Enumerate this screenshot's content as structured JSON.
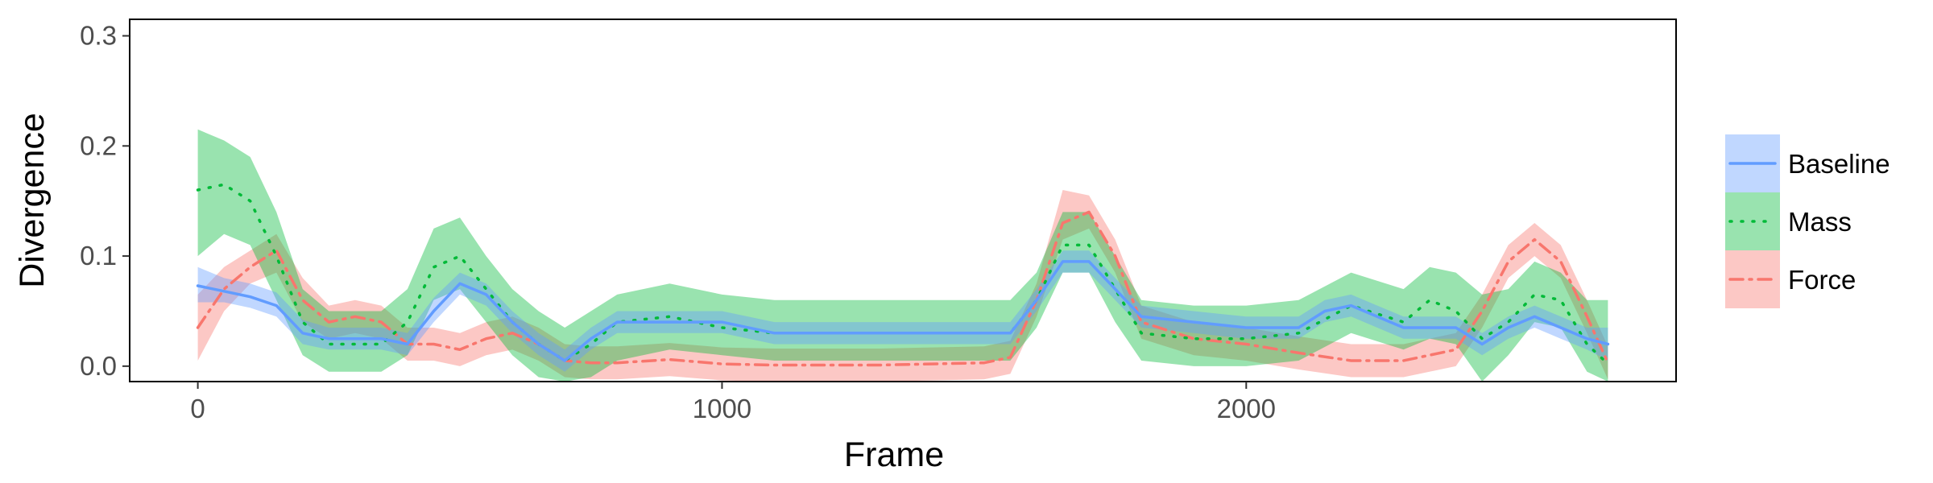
{
  "chart_data": {
    "type": "line",
    "title": "",
    "xlabel": "Frame",
    "ylabel": "Divergence",
    "xlim": [
      -130,
      2820
    ],
    "ylim": [
      -0.014,
      0.315
    ],
    "xticks": [
      0,
      1000,
      2000
    ],
    "xtick_labels": [
      "0",
      "1000",
      "2000"
    ],
    "yticks": [
      0.0,
      0.1,
      0.2,
      0.3
    ],
    "ytick_labels": [
      "0.0",
      "0.1",
      "0.2",
      "0.3"
    ],
    "grid": false,
    "legend_position": "right",
    "series": [
      {
        "name": "Force",
        "color": "#F8766D",
        "linestyle": "dashdot",
        "x": [
          0,
          50,
          100,
          150,
          200,
          250,
          300,
          350,
          400,
          450,
          500,
          550,
          600,
          650,
          700,
          750,
          800,
          900,
          1000,
          1100,
          1200,
          1300,
          1400,
          1500,
          1550,
          1600,
          1650,
          1700,
          1750,
          1800,
          1900,
          2000,
          2100,
          2200,
          2300,
          2400,
          2450,
          2500,
          2550,
          2600,
          2650,
          2690
        ],
        "y": [
          0.035,
          0.07,
          0.09,
          0.105,
          0.06,
          0.04,
          0.045,
          0.04,
          0.02,
          0.02,
          0.015,
          0.025,
          0.03,
          0.02,
          0.005,
          0.003,
          0.003,
          0.006,
          0.002,
          0.001,
          0.001,
          0.001,
          0.002,
          0.003,
          0.008,
          0.06,
          0.13,
          0.14,
          0.1,
          0.04,
          0.025,
          0.02,
          0.012,
          0.005,
          0.005,
          0.015,
          0.05,
          0.095,
          0.115,
          0.095,
          0.045,
          0.003
        ],
        "lower": [
          0.005,
          0.05,
          0.075,
          0.085,
          0.04,
          0.025,
          0.03,
          0.025,
          0.005,
          0.005,
          0.0,
          0.01,
          0.015,
          0.005,
          -0.01,
          -0.012,
          -0.012,
          -0.009,
          -0.013,
          -0.014,
          -0.014,
          -0.014,
          -0.013,
          -0.012,
          -0.007,
          0.045,
          0.115,
          0.125,
          0.085,
          0.025,
          0.01,
          0.005,
          -0.003,
          -0.01,
          -0.01,
          0.0,
          0.035,
          0.08,
          0.1,
          0.08,
          0.03,
          -0.012
        ],
        "upper": [
          0.065,
          0.09,
          0.105,
          0.12,
          0.08,
          0.055,
          0.06,
          0.055,
          0.035,
          0.035,
          0.03,
          0.04,
          0.045,
          0.035,
          0.02,
          0.018,
          0.018,
          0.021,
          0.017,
          0.016,
          0.016,
          0.016,
          0.017,
          0.018,
          0.023,
          0.075,
          0.16,
          0.155,
          0.115,
          0.055,
          0.04,
          0.035,
          0.027,
          0.02,
          0.02,
          0.03,
          0.065,
          0.11,
          0.13,
          0.11,
          0.06,
          0.018
        ]
      },
      {
        "name": "Mass",
        "color": "#00BA38",
        "linestyle": "dotted",
        "x": [
          0,
          50,
          100,
          150,
          200,
          250,
          300,
          350,
          400,
          450,
          500,
          550,
          600,
          650,
          700,
          750,
          800,
          900,
          1000,
          1100,
          1200,
          1300,
          1400,
          1500,
          1550,
          1600,
          1650,
          1700,
          1750,
          1800,
          1900,
          2000,
          2100,
          2200,
          2300,
          2350,
          2400,
          2450,
          2500,
          2550,
          2600,
          2650,
          2690
        ],
        "y": [
          0.16,
          0.165,
          0.15,
          0.1,
          0.04,
          0.02,
          0.02,
          0.02,
          0.04,
          0.09,
          0.1,
          0.07,
          0.04,
          0.02,
          0.005,
          0.02,
          0.04,
          0.045,
          0.035,
          0.03,
          0.03,
          0.03,
          0.03,
          0.03,
          0.03,
          0.06,
          0.11,
          0.11,
          0.07,
          0.03,
          0.025,
          0.025,
          0.03,
          0.055,
          0.04,
          0.06,
          0.05,
          0.025,
          0.04,
          0.065,
          0.06,
          0.02,
          0.002
        ],
        "lower": [
          0.1,
          0.12,
          0.11,
          0.06,
          0.01,
          -0.005,
          -0.005,
          -0.005,
          0.01,
          0.06,
          0.07,
          0.04,
          0.01,
          -0.01,
          -0.014,
          -0.01,
          0.005,
          0.015,
          0.01,
          0.005,
          0.005,
          0.005,
          0.005,
          0.005,
          0.005,
          0.035,
          0.085,
          0.085,
          0.04,
          0.005,
          0.0,
          0.0,
          0.005,
          0.03,
          0.015,
          0.025,
          0.02,
          -0.014,
          0.01,
          0.04,
          0.035,
          -0.005,
          -0.014
        ],
        "upper": [
          0.215,
          0.205,
          0.19,
          0.14,
          0.07,
          0.05,
          0.05,
          0.05,
          0.07,
          0.125,
          0.135,
          0.1,
          0.07,
          0.05,
          0.035,
          0.05,
          0.065,
          0.075,
          0.065,
          0.06,
          0.06,
          0.06,
          0.06,
          0.06,
          0.06,
          0.085,
          0.14,
          0.14,
          0.1,
          0.06,
          0.055,
          0.055,
          0.06,
          0.085,
          0.07,
          0.09,
          0.085,
          0.065,
          0.07,
          0.095,
          0.085,
          0.06,
          0.06
        ]
      },
      {
        "name": "Baseline",
        "color": "#619CFF",
        "linestyle": "solid",
        "x": [
          0,
          50,
          100,
          150,
          200,
          250,
          300,
          350,
          400,
          450,
          500,
          550,
          600,
          650,
          700,
          750,
          800,
          900,
          1000,
          1100,
          1200,
          1300,
          1400,
          1500,
          1550,
          1600,
          1650,
          1700,
          1750,
          1800,
          1900,
          2000,
          2100,
          2150,
          2200,
          2250,
          2300,
          2400,
          2450,
          2500,
          2550,
          2600,
          2650,
          2690
        ],
        "y": [
          0.073,
          0.068,
          0.063,
          0.055,
          0.03,
          0.025,
          0.025,
          0.025,
          0.02,
          0.05,
          0.075,
          0.065,
          0.04,
          0.02,
          0.005,
          0.025,
          0.04,
          0.04,
          0.04,
          0.03,
          0.03,
          0.03,
          0.03,
          0.03,
          0.03,
          0.06,
          0.095,
          0.095,
          0.07,
          0.045,
          0.04,
          0.035,
          0.035,
          0.05,
          0.055,
          0.045,
          0.035,
          0.035,
          0.02,
          0.035,
          0.045,
          0.035,
          0.025,
          0.02
        ],
        "lower": [
          0.058,
          0.058,
          0.053,
          0.045,
          0.02,
          0.015,
          0.015,
          0.015,
          0.01,
          0.04,
          0.065,
          0.055,
          0.03,
          0.01,
          -0.005,
          0.015,
          0.03,
          0.03,
          0.03,
          0.02,
          0.02,
          0.02,
          0.02,
          0.02,
          0.02,
          0.05,
          0.085,
          0.085,
          0.06,
          0.035,
          0.03,
          0.025,
          0.025,
          0.04,
          0.045,
          0.035,
          0.025,
          0.025,
          0.01,
          0.025,
          0.035,
          0.025,
          0.015,
          0.005
        ],
        "upper": [
          0.09,
          0.08,
          0.075,
          0.067,
          0.042,
          0.035,
          0.035,
          0.035,
          0.03,
          0.062,
          0.085,
          0.075,
          0.05,
          0.03,
          0.015,
          0.035,
          0.05,
          0.05,
          0.05,
          0.04,
          0.04,
          0.04,
          0.04,
          0.04,
          0.04,
          0.07,
          0.105,
          0.105,
          0.08,
          0.055,
          0.05,
          0.045,
          0.045,
          0.06,
          0.065,
          0.055,
          0.045,
          0.045,
          0.03,
          0.045,
          0.055,
          0.045,
          0.035,
          0.035
        ]
      }
    ],
    "legend_order": [
      "Baseline",
      "Mass",
      "Force"
    ]
  }
}
